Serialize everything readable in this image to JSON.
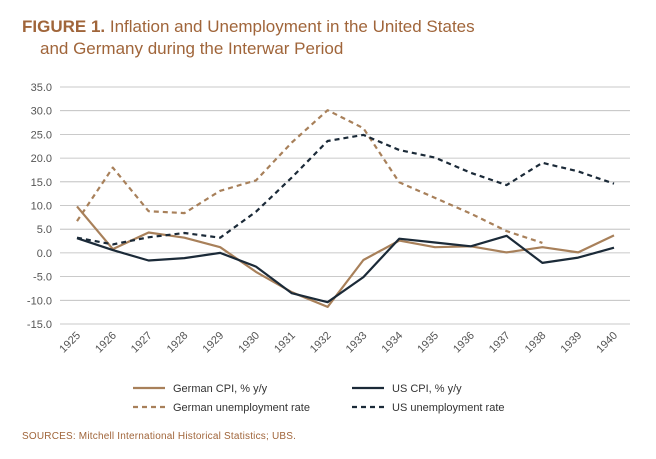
{
  "figure": {
    "label": "FIGURE 1.",
    "title_line1": "Inflation and Unemployment in the United States",
    "title_line2": "and Germany during the Interwar Period"
  },
  "source": "SOURCES: Mitchell International Historical Statistics; UBS.",
  "colors": {
    "german": "#a8805a",
    "us": "#1b2a38",
    "grid": "#b8b8b8",
    "axis_text": "#555555",
    "title": "#a0653a"
  },
  "chart_data": {
    "type": "line",
    "title": "Inflation and Unemployment in the United States and Germany during the Interwar Period",
    "xlabel": "",
    "ylabel": "",
    "x": [
      "1925",
      "1926",
      "1927",
      "1928",
      "1929",
      "1930",
      "1931",
      "1932",
      "1933",
      "1934",
      "1935",
      "1936",
      "1937",
      "1938",
      "1939",
      "1940"
    ],
    "ylim": [
      -15,
      35
    ],
    "y_ticks": [
      "35.0",
      "30.0",
      "25.0",
      "20.0",
      "15.0",
      "10.0",
      "5.0",
      "0.0",
      "-5.0",
      "-10.0",
      "-15.0"
    ],
    "grid": true,
    "legend_position": "bottom",
    "series": [
      {
        "name": "German CPI, % y/y",
        "color": "#a8805a",
        "dash": false,
        "values": [
          9.8,
          0.8,
          4.3,
          3.2,
          1.2,
          -4.0,
          -8.3,
          -11.4,
          -1.5,
          2.6,
          1.2,
          1.4,
          0.1,
          1.2,
          0.1,
          3.7
        ]
      },
      {
        "name": "US CPI, % y/y",
        "color": "#1b2a38",
        "dash": false,
        "values": [
          3.1,
          0.6,
          -1.6,
          -1.1,
          0.0,
          -2.9,
          -8.5,
          -10.4,
          -5.1,
          3.0,
          2.2,
          1.4,
          3.6,
          -2.1,
          -1.0,
          1.1
        ]
      },
      {
        "name": "German unemployment rate",
        "color": "#a8805a",
        "dash": true,
        "values": [
          6.7,
          18.0,
          8.8,
          8.4,
          13.1,
          15.3,
          23.3,
          30.1,
          26.3,
          14.9,
          11.6,
          8.3,
          4.6,
          2.1,
          null,
          null
        ]
      },
      {
        "name": "US unemployment rate",
        "color": "#1b2a38",
        "dash": true,
        "values": [
          3.2,
          1.8,
          3.3,
          4.2,
          3.2,
          8.7,
          15.9,
          23.6,
          24.9,
          21.7,
          20.1,
          16.9,
          14.3,
          19.0,
          17.2,
          14.6
        ]
      }
    ]
  }
}
